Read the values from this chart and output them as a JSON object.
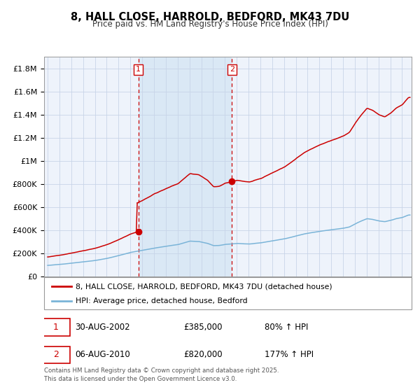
{
  "title": "8, HALL CLOSE, HARROLD, BEDFORD, MK43 7DU",
  "subtitle": "Price paid vs. HM Land Registry's House Price Index (HPI)",
  "legend_line1": "8, HALL CLOSE, HARROLD, BEDFORD, MK43 7DU (detached house)",
  "legend_line2": "HPI: Average price, detached house, Bedford",
  "sale1_date": "30-AUG-2002",
  "sale1_price": 385000,
  "sale1_label": "80% ↑ HPI",
  "sale2_date": "06-AUG-2010",
  "sale2_price": 820000,
  "sale2_label": "177% ↑ HPI",
  "vline1_x": 2002.67,
  "vline2_x": 2010.6,
  "marker1_x": 2002.67,
  "marker1_y": 385000,
  "marker2_x": 2010.6,
  "marker2_y": 820000,
  "hpi_color": "#7ab4d8",
  "price_color": "#cc0000",
  "shade_color": "#dae8f5",
  "background_color": "#eef3fb",
  "grid_color": "#c8d4e8",
  "ylim_max": 1900000,
  "xlim_start": 1994.7,
  "xlim_end": 2025.8,
  "yticks": [
    0,
    200000,
    400000,
    600000,
    800000,
    1000000,
    1200000,
    1400000,
    1600000,
    1800000
  ],
  "footnote": "Contains HM Land Registry data © Crown copyright and database right 2025.\nThis data is licensed under the Open Government Licence v3.0."
}
